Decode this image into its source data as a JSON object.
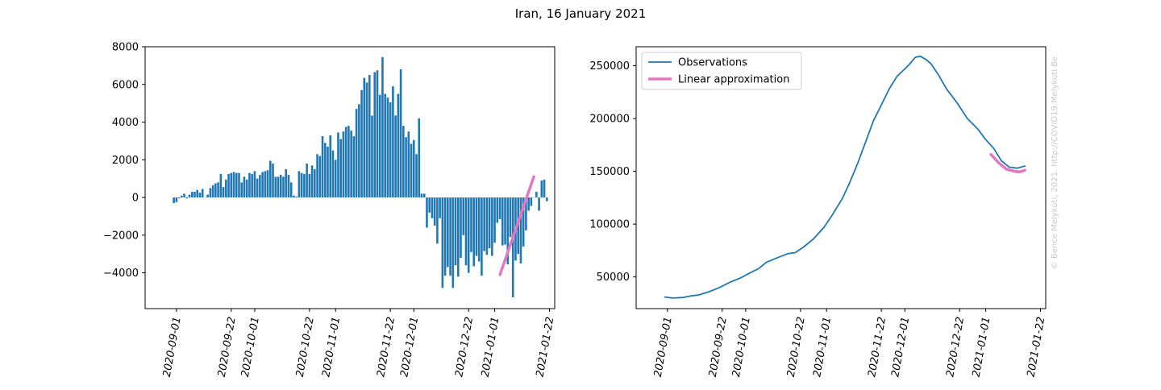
{
  "figure": {
    "title": "Iran, 16 January 2021",
    "watermark": "© Bence Melykúti, 2021. http://COVID19.Melykuti.Be",
    "colors": {
      "bars": "#1f77b4",
      "observations": "#1f77b4",
      "linear": "#e377c2",
      "axis": "#000000",
      "watermark": "#c8c8c8"
    }
  },
  "chart_data": [
    {
      "type": "bar",
      "title": "",
      "xlabel": "",
      "ylabel": "",
      "x_start": "2020-08-31",
      "ylim": [
        -5900,
        8000
      ],
      "xlim": [
        "2020-08-20",
        "2021-01-24"
      ],
      "grid": false,
      "yticks": [
        -4000,
        -2000,
        0,
        2000,
        4000,
        6000,
        8000
      ],
      "ytick_labels": [
        "−4000",
        "−2000",
        "0",
        "2000",
        "4000",
        "6000",
        "8000"
      ],
      "xticks": [
        "2020-09-01",
        "2020-09-22",
        "2020-10-01",
        "2020-10-22",
        "2020-11-01",
        "2020-11-22",
        "2020-12-01",
        "2020-12-22",
        "2021-01-01",
        "2021-01-22"
      ],
      "values": [
        -300,
        -250,
        -50,
        100,
        200,
        -50,
        150,
        300,
        300,
        400,
        250,
        450,
        0,
        150,
        500,
        650,
        750,
        800,
        1250,
        550,
        950,
        1250,
        1300,
        1350,
        1300,
        1300,
        800,
        1100,
        950,
        1300,
        1250,
        1400,
        1000,
        1200,
        1350,
        1400,
        1450,
        1950,
        1800,
        1100,
        1100,
        1200,
        1100,
        1500,
        1200,
        800,
        100,
        50,
        1400,
        1300,
        1250,
        1800,
        1250,
        1700,
        1500,
        2300,
        2200,
        3250,
        2900,
        2700,
        3300,
        2500,
        2000,
        3450,
        3100,
        3500,
        3750,
        3800,
        3550,
        3250,
        4700,
        4950,
        5700,
        6350,
        6100,
        6500,
        4350,
        6650,
        6750,
        5450,
        7450,
        5500,
        5300,
        5050,
        5900,
        4350,
        5500,
        6800,
        3800,
        3200,
        3500,
        2850,
        3050,
        2300,
        4200,
        200,
        200,
        -1600,
        -800,
        -1100,
        -1500,
        -2450,
        -1100,
        -4800,
        -4150,
        -3700,
        -4150,
        -4800,
        -3600,
        -4200,
        -3200,
        -2000,
        -3600,
        -4000,
        -2900,
        -3650,
        -3100,
        -3400,
        -4150,
        -2850,
        -3050,
        -2700,
        -3100,
        -2400,
        -1350,
        -1150,
        -2550,
        -2500,
        -3550,
        -2100,
        -5300,
        -3350,
        -3000,
        -3500,
        -2600,
        -1750,
        -700,
        -450,
        0,
        300,
        -700,
        900,
        950,
        -200
      ],
      "series": [
        {
          "name": "Linear approximation",
          "x": [
            "2021-01-03",
            "2021-01-16"
          ],
          "y": [
            -4100,
            1100
          ]
        }
      ]
    },
    {
      "type": "line",
      "title": "",
      "xlabel": "",
      "ylabel": "",
      "ylim": [
        20000,
        268000
      ],
      "xlim": [
        "2020-08-20",
        "2021-01-24"
      ],
      "grid": false,
      "legend": "top-left",
      "yticks": [
        50000,
        100000,
        150000,
        200000,
        250000
      ],
      "ytick_labels": [
        "50000",
        "100000",
        "150000",
        "200000",
        "250000"
      ],
      "xticks": [
        "2020-09-01",
        "2020-09-22",
        "2020-10-01",
        "2020-10-22",
        "2020-11-01",
        "2020-11-22",
        "2020-12-01",
        "2020-12-22",
        "2021-01-01",
        "2021-01-22"
      ],
      "series": [
        {
          "name": "Observations",
          "x": [
            "2020-08-31",
            "2020-09-03",
            "2020-09-07",
            "2020-09-10",
            "2020-09-13",
            "2020-09-17",
            "2020-09-21",
            "2020-09-25",
            "2020-09-29",
            "2020-10-02",
            "2020-10-06",
            "2020-10-09",
            "2020-10-13",
            "2020-10-17",
            "2020-10-20",
            "2020-10-23",
            "2020-10-27",
            "2020-10-31",
            "2020-11-03",
            "2020-11-07",
            "2020-11-10",
            "2020-11-13",
            "2020-11-16",
            "2020-11-19",
            "2020-11-22",
            "2020-11-25",
            "2020-11-28",
            "2020-12-01",
            "2020-12-03",
            "2020-12-05",
            "2020-12-07",
            "2020-12-09",
            "2020-12-11",
            "2020-12-14",
            "2020-12-17",
            "2020-12-21",
            "2020-12-25",
            "2020-12-29",
            "2021-01-01",
            "2021-01-04",
            "2021-01-07",
            "2021-01-10",
            "2021-01-13",
            "2021-01-16"
          ],
          "y": [
            31000,
            30000,
            30500,
            32000,
            33000,
            36000,
            40000,
            45000,
            49000,
            53000,
            58000,
            64000,
            68000,
            72000,
            73000,
            78000,
            86000,
            97000,
            108000,
            124000,
            140000,
            158000,
            178000,
            198000,
            213000,
            228000,
            240000,
            247000,
            252000,
            258000,
            259000,
            256000,
            252000,
            241000,
            228000,
            215000,
            200000,
            190000,
            180000,
            172000,
            160000,
            154000,
            153000,
            155000
          ]
        },
        {
          "name": "Linear approximation",
          "x": [
            "2021-01-03",
            "2021-01-06",
            "2021-01-09",
            "2021-01-12",
            "2021-01-14",
            "2021-01-16"
          ],
          "y": [
            166000,
            158000,
            152000,
            150000,
            149500,
            151000
          ]
        }
      ]
    }
  ]
}
